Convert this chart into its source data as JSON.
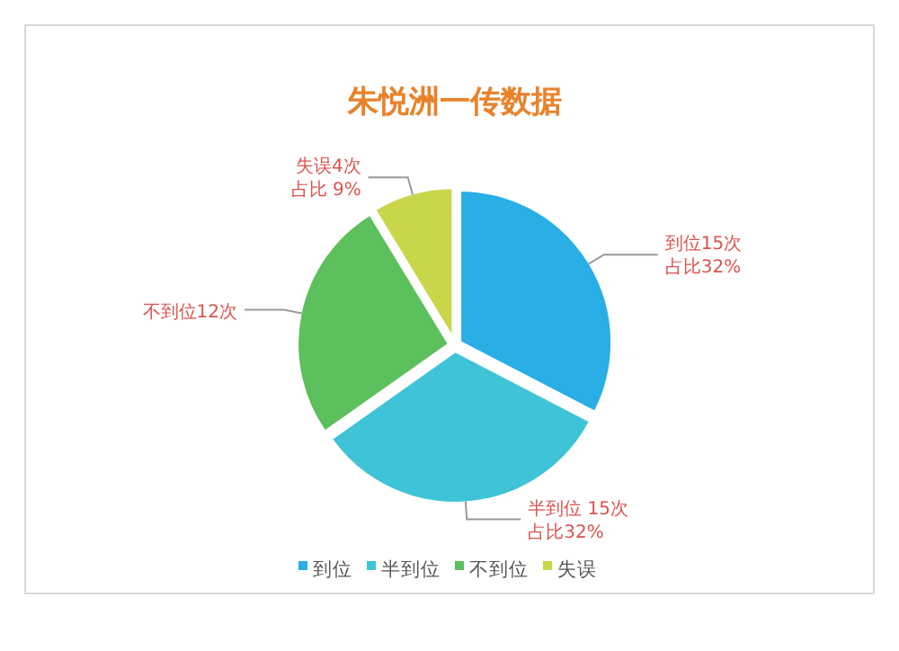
{
  "chart_data": {
    "type": "pie",
    "title": "朱悦洲一传数据",
    "categories": [
      "到位",
      "半到位",
      "不到位",
      "失误"
    ],
    "values": [
      15,
      15,
      12,
      4
    ],
    "colors": [
      "#29aee6",
      "#3fc3d6",
      "#5cc05c",
      "#c9d64a"
    ],
    "value_labels": [
      "到位15次占比32%",
      "半到位 15次占比32%",
      "不到位12次",
      "失误4次占比 9%"
    ],
    "legend": "bottom"
  }
}
